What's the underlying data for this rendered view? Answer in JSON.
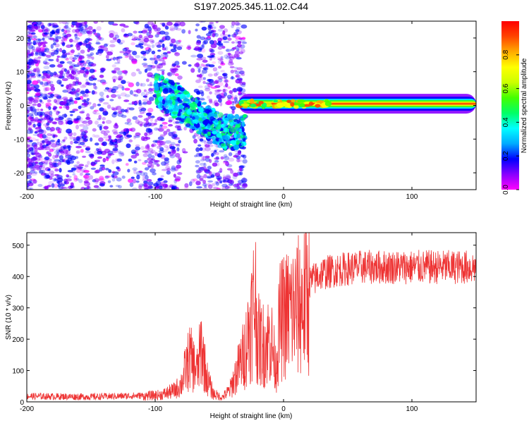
{
  "chart_data": [
    {
      "type": "heatmap",
      "title": "S197.2025.345.11.02.C44",
      "xlabel": "Height of straight line (km)",
      "ylabel": "Frequency (Hz)",
      "xlim": [
        -200,
        150
      ],
      "ylim": [
        -25,
        25
      ],
      "xticks": [
        -200,
        -100,
        0,
        100
      ],
      "yticks": [
        20,
        10,
        0,
        -10,
        -20
      ],
      "colorbar": {
        "label": "Normalized spectral amplitude",
        "range": [
          0.0,
          1.0
        ],
        "ticks": [
          "0.0",
          "0.2",
          "0.4",
          "0.6",
          "0.8"
        ],
        "colors": [
          "#ff00ff",
          "#8800ff",
          "#0000ff",
          "#00aaff",
          "#00ffff",
          "#00ff66",
          "#44ff00",
          "#ccff00",
          "#ffff00",
          "#ffaa00",
          "#ff4400",
          "#ff0000"
        ]
      },
      "features": [
        {
          "name": "background scatter",
          "x_range": [
            -200,
            -30
          ],
          "freq_range": [
            -25,
            25
          ],
          "amplitude": 0.12
        },
        {
          "name": "diagonal band",
          "x_range": [
            -100,
            -30
          ],
          "freq_start": 5,
          "freq_end": -8,
          "amplitude": 0.3
        },
        {
          "name": "carrier line",
          "x_range": [
            -35,
            150
          ],
          "freq": 0.5,
          "amplitude": 0.85
        }
      ]
    },
    {
      "type": "line",
      "title": "",
      "xlabel": "Height of straight line (km)",
      "ylabel": "SNR (10 * v/v)",
      "xlim": [
        -200,
        150
      ],
      "ylim": [
        0,
        540
      ],
      "xticks": [
        -200,
        -100,
        0,
        100
      ],
      "yticks": [
        0,
        100,
        200,
        300,
        400,
        500
      ],
      "color": "#ee3333",
      "series": [
        {
          "name": "SNR",
          "x": [
            -200,
            -150,
            -110,
            -95,
            -85,
            -80,
            -76,
            -73,
            -70,
            -67,
            -64,
            -60,
            -55,
            -48,
            -42,
            -36,
            -30,
            -25,
            -22,
            -20,
            -15,
            -10,
            -6,
            -3,
            0,
            5,
            10,
            15,
            20,
            25,
            30,
            40,
            50,
            60,
            80,
            100,
            120,
            150
          ],
          "y": [
            18,
            16,
            20,
            25,
            40,
            60,
            120,
            160,
            130,
            110,
            200,
            90,
            30,
            15,
            40,
            110,
            180,
            300,
            380,
            220,
            200,
            230,
            120,
            280,
            300,
            320,
            330,
            350,
            380,
            395,
            410,
            420,
            425,
            430,
            430,
            430,
            430,
            430
          ]
        }
      ]
    }
  ]
}
